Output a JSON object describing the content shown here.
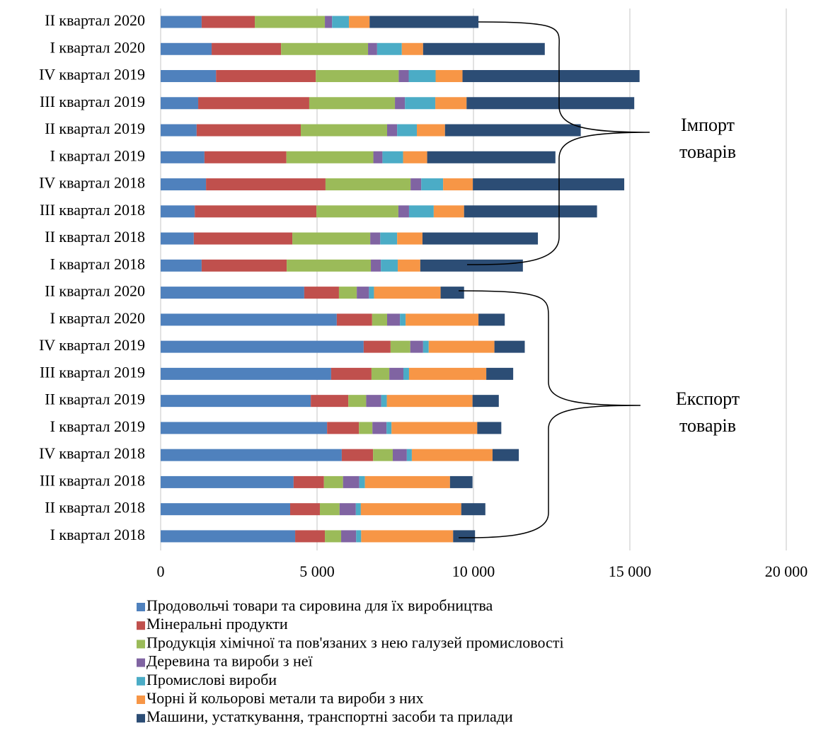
{
  "chart_data": {
    "type": "bar",
    "orientation": "horizontal",
    "stacked": true,
    "categories": [
      "II квартал 2020",
      "I квартал 2020",
      "IV квартал 2019",
      "III квартал 2019",
      "II квартал 2019",
      "I квартал 2019",
      "IV квартал 2018",
      "III квартал 2018",
      "II квартал 2018",
      "I квартал 2018",
      "II квартал 2020",
      "I квартал 2020",
      "IV квартал 2019",
      "III квартал 2019",
      "II квартал 2019",
      "I квартал 2019",
      "IV квартал 2018",
      "III квартал 2018",
      "II квартал 2018",
      "I квартал 2018"
    ],
    "series": [
      {
        "name": "Продовольчі товари та сировина для їх виробництва",
        "color": "#4f81bd",
        "values": [
          1310,
          1630,
          1770,
          1200,
          1150,
          1400,
          1450,
          1090,
          1060,
          1310,
          4590,
          5630,
          6490,
          5450,
          4800,
          5320,
          5790,
          4250,
          4140,
          4300
        ]
      },
      {
        "name": "Мінеральні продукти",
        "color": "#c0504d",
        "values": [
          1700,
          2220,
          3190,
          3550,
          3330,
          2620,
          3820,
          3890,
          3150,
          2720,
          1110,
          1130,
          860,
          1290,
          1200,
          1020,
          1000,
          970,
          950,
          950
        ]
      },
      {
        "name": "Продукція хімічної та пов'язаних з нею галузей промисловості",
        "color": "#9bbb59",
        "values": [
          2240,
          2780,
          2650,
          2740,
          2760,
          2780,
          2720,
          2620,
          2490,
          2690,
          570,
          480,
          630,
          570,
          570,
          430,
          630,
          610,
          630,
          520
        ]
      },
      {
        "name": "Деревина та вироби з неї",
        "color": "#8064a2",
        "values": [
          230,
          290,
          320,
          320,
          320,
          290,
          340,
          340,
          320,
          320,
          390,
          410,
          410,
          450,
          480,
          450,
          450,
          520,
          520,
          480
        ]
      },
      {
        "name": "Промислові вироби",
        "color": "#4bacc6",
        "values": [
          540,
          790,
          860,
          970,
          630,
          660,
          700,
          790,
          540,
          540,
          160,
          180,
          180,
          180,
          180,
          160,
          160,
          180,
          160,
          160
        ]
      },
      {
        "name": "Чорні й кольорові метали та вироби з них",
        "color": "#f79646",
        "values": [
          660,
          680,
          860,
          1000,
          900,
          770,
          950,
          970,
          810,
          720,
          2130,
          2330,
          2100,
          2470,
          2740,
          2740,
          2580,
          2720,
          3210,
          2940
        ]
      },
      {
        "name": "Машини, устаткування, транспортні засоби та  прилади",
        "color": "#2c4d75",
        "values": [
          3480,
          3890,
          5660,
          5360,
          4340,
          4100,
          4840,
          4250,
          3690,
          3280,
          750,
          840,
          970,
          860,
          840,
          770,
          840,
          720,
          770,
          700
        ]
      }
    ],
    "xlim": [
      0,
      20000
    ],
    "xticks": [
      0,
      {
        "value": 5000,
        "label": "5 000"
      },
      {
        "value": 10000,
        "label": "10 000"
      },
      {
        "value": 15000,
        "label": "15 000"
      },
      {
        "value": 20000,
        "label": "20 000"
      }
    ],
    "grid": true,
    "annotations": [
      "Імпорт товарів",
      "Експорт товарів"
    ],
    "legend": "bottom"
  }
}
